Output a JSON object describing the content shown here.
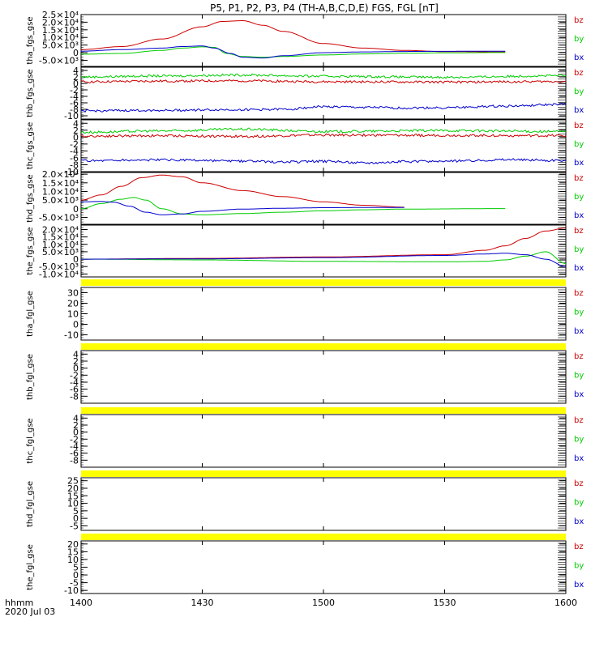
{
  "title": "P5, P1, P2, P3, P4 (TH-A,B,C,D,E) FGS, FGL [nT]",
  "colors": {
    "bz": "#cc0000",
    "by": "#00cc00",
    "bx": "#0000cc",
    "bar": "#ffff00",
    "axis": "#000000"
  },
  "footer": {
    "time_label": "hhmm",
    "date_label": "2020 Jul 03"
  },
  "x_axis": {
    "min": 1400,
    "max": 1600,
    "ticks": [
      1400,
      1430,
      1500,
      1530,
      1600
    ]
  },
  "chart_data": [
    {
      "type": "line",
      "ylabel": "tha_fgs_gse",
      "ylim": [
        -9000,
        25000
      ],
      "yticks": [
        "-5.0×10³",
        "0",
        "5.0×10³",
        "1.0×10⁴",
        "1.5×10⁴",
        "2.0×10⁴",
        "2.5×10⁴"
      ],
      "ytick_values": [
        -5000,
        0,
        5000,
        10000,
        15000,
        20000,
        25000
      ],
      "series": [
        {
          "name": "bz",
          "x": [
            1400,
            1410,
            1420,
            1430,
            1435,
            1440,
            1445,
            1450,
            1500,
            1510,
            1520,
            1530,
            1545
          ],
          "y": [
            2000,
            4000,
            9000,
            17000,
            20500,
            21000,
            18000,
            14000,
            6000,
            3000,
            1500,
            700,
            500
          ]
        },
        {
          "name": "by",
          "x": [
            1400,
            1410,
            1420,
            1425,
            1430,
            1433,
            1436,
            1440,
            1445,
            1450,
            1500,
            1510,
            1520,
            1530,
            1545
          ],
          "y": [
            -1000,
            -500,
            1500,
            3000,
            3800,
            3500,
            -500,
            -2500,
            -3000,
            -2500,
            -1500,
            -800,
            -400,
            -100,
            100
          ]
        },
        {
          "name": "bx",
          "x": [
            1400,
            1410,
            1420,
            1425,
            1430,
            1433,
            1437,
            1440,
            1445,
            1450,
            1500,
            1510,
            1520,
            1530,
            1545
          ],
          "y": [
            1000,
            2000,
            3000,
            4000,
            4400,
            3000,
            -500,
            -3000,
            -3500,
            -2000,
            0,
            500,
            800,
            900,
            1000
          ]
        }
      ]
    },
    {
      "type": "line",
      "ylabel": "thb_fgs_gse",
      "ylim": [
        -11,
        5
      ],
      "yticks": [
        "-10",
        "-8",
        "-6",
        "-4",
        "-2",
        "0",
        "2",
        "4"
      ],
      "ytick_values": [
        -10,
        -8,
        -6,
        -4,
        -2,
        0,
        2,
        4
      ],
      "series": [
        {
          "name": "bz",
          "x": [
            1400,
            1420,
            1440,
            1500,
            1530,
            1600
          ],
          "y": [
            0.5,
            0.7,
            0.8,
            0.5,
            0.4,
            0.6
          ]
        },
        {
          "name": "by",
          "x": [
            1400,
            1420,
            1440,
            1500,
            1530,
            1600
          ],
          "y": [
            2,
            2.3,
            2.6,
            2.2,
            1.9,
            2.4
          ]
        },
        {
          "name": "bx",
          "x": [
            1400,
            1420,
            1440,
            1450,
            1500,
            1510,
            1520,
            1530,
            1545,
            1600
          ],
          "y": [
            -8.5,
            -8.3,
            -8.1,
            -8.0,
            -7.2,
            -7.4,
            -7.6,
            -7.5,
            -7.0,
            -6.5
          ]
        }
      ]
    },
    {
      "type": "line",
      "ylabel": "thc_fgs_gse",
      "ylim": [
        -10,
        5
      ],
      "yticks": [
        "-10",
        "-8",
        "-6",
        "-4",
        "-2",
        "0",
        "2",
        "4"
      ],
      "ytick_values": [
        -10,
        -8,
        -6,
        -4,
        -2,
        0,
        2,
        4
      ],
      "series": [
        {
          "name": "bz",
          "x": [
            1400,
            1420,
            1440,
            1500,
            1530,
            1600
          ],
          "y": [
            0.3,
            0.4,
            0.2,
            0.6,
            0.5,
            0.4
          ]
        },
        {
          "name": "by",
          "x": [
            1400,
            1420,
            1440,
            1500,
            1530,
            1600
          ],
          "y": [
            1.4,
            1.8,
            2.3,
            1.6,
            1.9,
            1.6
          ]
        },
        {
          "name": "bx",
          "x": [
            1400,
            1420,
            1440,
            1450,
            1500,
            1510,
            1520,
            1530,
            1545,
            1600
          ],
          "y": [
            -6.8,
            -6.6,
            -7.0,
            -7.2,
            -7.0,
            -7.4,
            -7.1,
            -7.0,
            -6.5,
            -6.8
          ]
        }
      ]
    },
    {
      "type": "line",
      "ylabel": "thd_fgs_gse",
      "ylim": [
        -9000,
        21000
      ],
      "yticks": [
        "-5.0×10³",
        "0",
        "5.0×10³",
        "1.0×10⁴",
        "1.5×10⁴",
        "2.0×10⁴"
      ],
      "ytick_values": [
        -5000,
        0,
        5000,
        10000,
        15000,
        20000
      ],
      "series": [
        {
          "name": "bz",
          "x": [
            1400,
            1405,
            1410,
            1415,
            1420,
            1425,
            1430,
            1440,
            1450,
            1500,
            1510,
            1520
          ],
          "y": [
            5000,
            8000,
            13000,
            18000,
            19500,
            18500,
            15000,
            10500,
            7000,
            4000,
            2000,
            900
          ]
        },
        {
          "name": "by",
          "x": [
            1400,
            1405,
            1410,
            1413,
            1416,
            1420,
            1425,
            1430,
            1440,
            1450,
            1500,
            1510,
            1520,
            1545
          ],
          "y": [
            0,
            3000,
            5500,
            6500,
            5000,
            0,
            -3000,
            -3500,
            -2800,
            -2000,
            -1200,
            -600,
            -200,
            100
          ]
        },
        {
          "name": "bx",
          "x": [
            1400,
            1405,
            1408,
            1412,
            1416,
            1420,
            1425,
            1430,
            1440,
            1450,
            1500,
            1510,
            1520
          ],
          "y": [
            4000,
            4200,
            3800,
            1500,
            -2000,
            -3500,
            -3000,
            -1500,
            -200,
            300,
            600,
            700,
            700
          ]
        }
      ]
    },
    {
      "type": "line",
      "ylabel": "the_fgs_gse",
      "ylim": [
        -12000,
        23000
      ],
      "yticks": [
        "-1.0×10⁴",
        "-5.0×10³",
        "0",
        "5.0×10³",
        "1.0×10⁴",
        "1.5×10⁴",
        "2.0×10⁴"
      ],
      "ytick_values": [
        -10000,
        -5000,
        0,
        5000,
        10000,
        15000,
        20000
      ],
      "series": [
        {
          "name": "bz",
          "x": [
            1400,
            1430,
            1500,
            1530,
            1540,
            1545,
            1550,
            1555,
            1600
          ],
          "y": [
            0,
            500,
            1500,
            3000,
            6000,
            9000,
            14000,
            19000,
            21000
          ]
        },
        {
          "name": "by",
          "x": [
            1400,
            1430,
            1500,
            1530,
            1540,
            1545,
            1550,
            1555,
            1600
          ],
          "y": [
            0,
            -500,
            -1500,
            -1800,
            -1500,
            -500,
            2000,
            5000,
            -3000
          ]
        },
        {
          "name": "bx",
          "x": [
            1400,
            1430,
            1500,
            1530,
            1540,
            1545,
            1550,
            1555,
            1600
          ],
          "y": [
            0,
            200,
            1000,
            2500,
            3500,
            4000,
            3000,
            0,
            -5000
          ]
        }
      ]
    },
    {
      "type": "line",
      "ylabel": "tha_fgl_gse",
      "ylim": [
        -15,
        35
      ],
      "yticks": [
        "-10",
        "0",
        "10",
        "20",
        "30"
      ],
      "ytick_values": [
        -10,
        0,
        10,
        20,
        30
      ],
      "series": []
    },
    {
      "type": "line",
      "ylabel": "thb_fgl_gse",
      "ylim": [
        -10,
        5
      ],
      "yticks": [
        "-8",
        "-6",
        "-4",
        "-2",
        "0",
        "2",
        "4"
      ],
      "ytick_values": [
        -8,
        -6,
        -4,
        -2,
        0,
        2,
        4
      ],
      "series": []
    },
    {
      "type": "line",
      "ylabel": "thc_fgl_gse",
      "ylim": [
        -10,
        5
      ],
      "yticks": [
        "-8",
        "-6",
        "-4",
        "-2",
        "0",
        "2",
        "4"
      ],
      "ytick_values": [
        -8,
        -6,
        -4,
        -2,
        0,
        2,
        4
      ],
      "series": []
    },
    {
      "type": "line",
      "ylabel": "thd_fgl_gse",
      "ylim": [
        -8,
        27
      ],
      "yticks": [
        "-5",
        "0",
        "5",
        "10",
        "15",
        "20",
        "25"
      ],
      "ytick_values": [
        -5,
        0,
        5,
        10,
        15,
        20,
        25
      ],
      "series": []
    },
    {
      "type": "line",
      "ylabel": "the_fgl_gse",
      "ylim": [
        -12,
        22
      ],
      "yticks": [
        "-10",
        "-5",
        "0",
        "5",
        "10",
        "15",
        "20"
      ],
      "ytick_values": [
        -10,
        -5,
        0,
        5,
        10,
        15,
        20
      ],
      "series": []
    }
  ],
  "legend": [
    "bz",
    "by",
    "bx"
  ]
}
